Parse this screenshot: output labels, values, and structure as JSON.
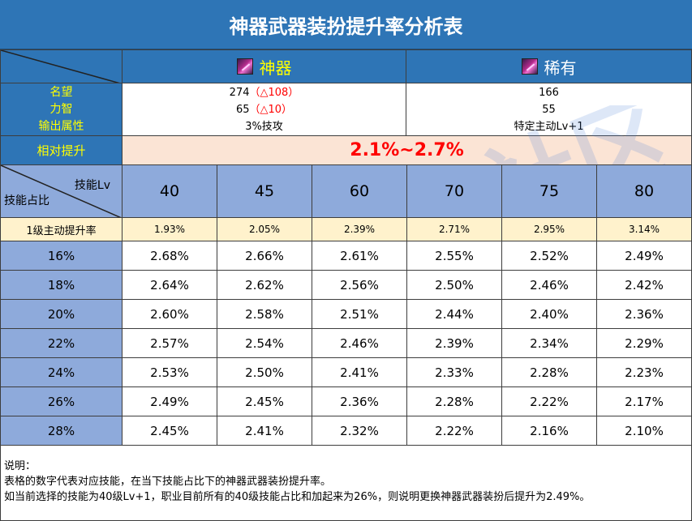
{
  "title": "神器武器装扮提升率分析表",
  "artifact_header": "神器",
  "rare_header": "稀有",
  "attr_labels": [
    "名望",
    "力智",
    "输出属性"
  ],
  "artifact_values": {
    "fame": "274",
    "fame_delta": "（△108）",
    "stat": "65",
    "stat_delta": "（△10）",
    "output": "3%技攻"
  },
  "rare_values": {
    "fame": "166",
    "stat": "55",
    "output": "特定主动Lv+1"
  },
  "relative_label": "相对提升",
  "relative_value": "2.1%~2.7%",
  "corner": {
    "top_label": "技能Lv",
    "bottom_label": "技能占比"
  },
  "levels": [
    "40",
    "45",
    "60",
    "70",
    "75",
    "80"
  ],
  "row1_label": "1级主动提升率",
  "row1_values": [
    "1.93%",
    "2.05%",
    "2.39%",
    "2.71%",
    "2.95%",
    "3.14%"
  ],
  "rows": [
    {
      "label": "16%",
      "values": [
        "2.68%",
        "2.66%",
        "2.61%",
        "2.55%",
        "2.52%",
        "2.49%"
      ]
    },
    {
      "label": "18%",
      "values": [
        "2.64%",
        "2.62%",
        "2.56%",
        "2.50%",
        "2.46%",
        "2.42%"
      ]
    },
    {
      "label": "20%",
      "values": [
        "2.60%",
        "2.58%",
        "2.51%",
        "2.44%",
        "2.40%",
        "2.36%"
      ]
    },
    {
      "label": "22%",
      "values": [
        "2.57%",
        "2.54%",
        "2.46%",
        "2.39%",
        "2.34%",
        "2.29%"
      ]
    },
    {
      "label": "24%",
      "values": [
        "2.53%",
        "2.50%",
        "2.41%",
        "2.33%",
        "2.28%",
        "2.23%"
      ]
    },
    {
      "label": "26%",
      "values": [
        "2.49%",
        "2.45%",
        "2.36%",
        "2.28%",
        "2.22%",
        "2.17%"
      ]
    },
    {
      "label": "28%",
      "values": [
        "2.45%",
        "2.41%",
        "2.32%",
        "2.22%",
        "2.16%",
        "2.10%"
      ]
    }
  ],
  "notes": [
    "说明：",
    "表格的数字代表对应技能，在当下技能占比下的神器武器装扮提升率。",
    "如当前选择的技能为40级Lv+1，职业目前所有的40级技能占比和加起来为26%，则说明更换神器武器装扮后提升为2.49%。"
  ],
  "watermark_text": "COLG玩家社区",
  "colors": {
    "header_blue": "#2e75b6",
    "light_blue": "#8eaadb",
    "peach": "#fbe4d5",
    "cream": "#fff2cc",
    "label_yellow": "#ffff00",
    "highlight_red": "#ff0000"
  },
  "icons": {
    "artifact": "purple-weapon-icon",
    "rare": "purple-weapon-icon"
  }
}
